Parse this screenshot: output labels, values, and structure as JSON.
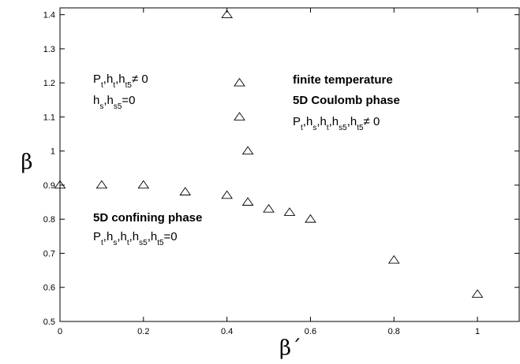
{
  "chart_data": {
    "type": "scatter",
    "title": "",
    "xlabel": "β´",
    "ylabel": "β",
    "xlim": [
      0,
      1.1
    ],
    "ylim": [
      0.5,
      1.42
    ],
    "x_ticks": [
      "0",
      "0.2",
      "0.4",
      "0.6",
      "0.8",
      "1"
    ],
    "y_ticks": [
      "0.5",
      "0.6",
      "0.7",
      "0.8",
      "0.9",
      "1",
      "1.1",
      "1.2",
      "1.3",
      "1.4"
    ],
    "marker": "open-triangle",
    "grid": false,
    "series": [
      {
        "x": [
          0,
          0.1,
          0.2,
          0.3,
          0.4,
          0.45,
          0.5,
          0.55,
          0.6,
          0.8,
          1.0,
          0.45,
          0.43,
          0.43,
          0.4
        ],
        "y": [
          0.9,
          0.9,
          0.9,
          0.88,
          0.87,
          0.85,
          0.83,
          0.82,
          0.8,
          0.68,
          0.58,
          1.0,
          1.1,
          1.2,
          1.4
        ]
      }
    ],
    "annotations": {
      "upper_left": {
        "line1": {
          "P": "P",
          "P_sub": "t",
          "sep1": ",h",
          "h1_sub": "t",
          "sep2": ",h",
          "h2_sub": "t5",
          "rel": "≠ 0"
        },
        "line2": {
          "h": "h",
          "h_sub": "s",
          "sep": ",h",
          "h2_sub": "s5",
          "rel": "=0"
        }
      },
      "finite_temperature": "finite temperature",
      "coulomb_phase": "5D Coulomb phase",
      "coulomb_condition": {
        "P": "P",
        "P_sub": "t",
        "a": ",h",
        "a_sub": "s",
        "b": ",h",
        "b_sub": "t",
        "c": ",h",
        "c_sub": "s5",
        "d": ",h",
        "d_sub": "t5",
        "rel": "≠ 0"
      },
      "confining_phase": "5D confining phase",
      "confining_condition": {
        "P": "P",
        "P_sub": "t",
        "a": ",h",
        "a_sub": "s",
        "b": ",h",
        "b_sub": "t",
        "c": ",h",
        "c_sub": "s5",
        "d": ",h",
        "d_sub": "t5",
        "rel": "=0"
      }
    }
  }
}
